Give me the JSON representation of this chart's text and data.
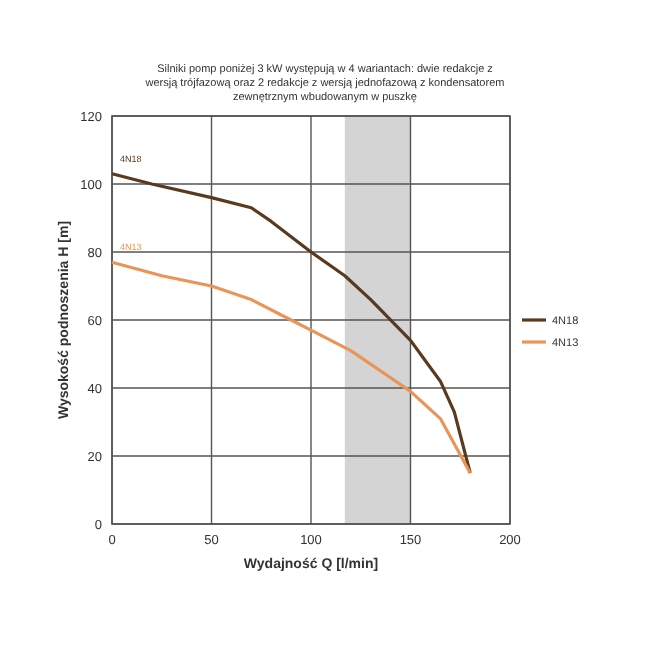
{
  "chart_data": {
    "type": "line",
    "title": "Silniki pomp poniżej 3 kW występują w 4 wariantach: dwie redakcje z wersją trójfazową oraz 2 redakcje z wersją jednofazową z kondensatorem zewnętrznym wbudowanym w puszkę",
    "xlabel": "Wydajność Q [l/min]",
    "ylabel": "Wysokość podnoszenia H [m]",
    "xlim": [
      0,
      200
    ],
    "xticks": [
      0,
      50,
      100,
      150,
      200
    ],
    "ylim": [
      0,
      120
    ],
    "yticks": [
      0,
      20,
      40,
      60,
      80,
      100,
      120
    ],
    "grid": true,
    "legend": "right",
    "bands": [
      {
        "axis": "x",
        "from": 117,
        "to": 150,
        "color": "#d4d4d4"
      }
    ],
    "series": [
      {
        "name": "4N18",
        "color": "#5a3a1f",
        "x": [
          0,
          20,
          50,
          70,
          80,
          100,
          117,
          130,
          150,
          165,
          172,
          180
        ],
        "values": [
          103,
          100,
          96,
          93,
          89,
          80,
          73,
          66,
          54,
          42,
          33,
          15
        ]
      },
      {
        "name": "4N13",
        "color": "#e8955a",
        "x": [
          0,
          25,
          50,
          70,
          90,
          100,
          120,
          140,
          150,
          165,
          180
        ],
        "values": [
          77,
          73,
          70,
          66,
          60,
          57,
          51,
          43,
          39,
          31,
          15
        ]
      }
    ]
  }
}
